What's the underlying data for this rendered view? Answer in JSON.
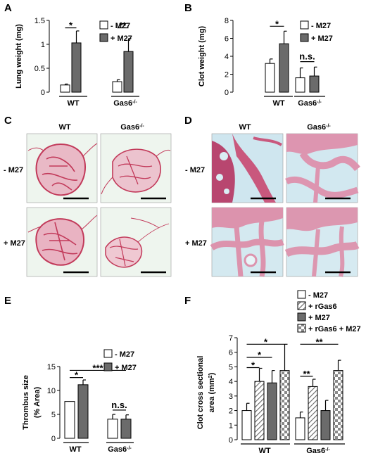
{
  "panels": {
    "A": "A",
    "B": "B",
    "C": "C",
    "D": "D",
    "E": "E",
    "F": "F"
  },
  "histology": {
    "col_wt": "WT",
    "col_gas6": "Gas6",
    "col_gas6_sup": "-/-",
    "row_minus": "- M27",
    "row_plus": "+ M27"
  },
  "colors": {
    "bar_dark": "#6b6b6b",
    "bar_white": "#ffffff",
    "tissue_c_bg": "#eef5ee",
    "tissue_c_stain": "#c23a5a",
    "tissue_d_bg": "#cfe6ef",
    "tissue_d_stain": "#c9587d"
  },
  "chart_data": [
    {
      "id": "A",
      "type": "bar",
      "ylabel": "Lung weight (mg)",
      "ylim": [
        0,
        1.5
      ],
      "yticks": [
        "0",
        "0.5",
        "1",
        "1.5"
      ],
      "groups": [
        {
          "label": "WT",
          "sup": ""
        },
        {
          "label": "Gas6",
          "sup": "-/-"
        }
      ],
      "series": [
        {
          "name": "- M27",
          "values": [
            0.15,
            0.22
          ],
          "errors": [
            0.02,
            0.04
          ]
        },
        {
          "name": "+ M27",
          "values": [
            1.03,
            0.85
          ],
          "errors": [
            0.25,
            0.27
          ]
        }
      ],
      "sig": [
        "*",
        "**"
      ]
    },
    {
      "id": "B",
      "type": "bar",
      "ylabel": "Clot weight (mg)",
      "ylim": [
        0,
        8
      ],
      "yticks": [
        "0",
        "2",
        "4",
        "6",
        "8"
      ],
      "groups": [
        {
          "label": "WT",
          "sup": ""
        },
        {
          "label": "Gas6",
          "sup": "-/-"
        }
      ],
      "series": [
        {
          "name": "- M27",
          "values": [
            3.2,
            1.6
          ],
          "errors": [
            0.5,
            1.1
          ]
        },
        {
          "name": "+ M27",
          "values": [
            5.4,
            1.8
          ],
          "errors": [
            1.4,
            1.0
          ]
        }
      ],
      "sig": [
        "*",
        "n.s."
      ]
    },
    {
      "id": "E",
      "type": "bar",
      "ylabel": "Thrombus size",
      "ylabel2": "(% Area)",
      "ylim": [
        0,
        15
      ],
      "yticks": [
        "0",
        "5",
        "10",
        "15"
      ],
      "groups": [
        {
          "label": "WT",
          "sup": ""
        },
        {
          "label": "Gas6",
          "sup": "-/-"
        }
      ],
      "series": [
        {
          "name": "- M27",
          "values": [
            7.7,
            4.0
          ],
          "errors": [
            0,
            1.0
          ]
        },
        {
          "name": "+ M27",
          "values": [
            11.2,
            4.0
          ],
          "errors": [
            1.0,
            0.9
          ]
        }
      ],
      "sig": [
        "*",
        "***",
        "n.s."
      ]
    },
    {
      "id": "F",
      "type": "bar",
      "ylabel": "Clot cross sectional",
      "ylabel2": "area (mm",
      "ylabel2_sup": "2",
      "ylabel2_end": ")",
      "ylim": [
        0,
        7
      ],
      "yticks": [
        "0",
        "1",
        "2",
        "3",
        "4",
        "5",
        "6",
        "7"
      ],
      "groups": [
        {
          "label": "WT",
          "sup": ""
        },
        {
          "label": "Gas6",
          "sup": "-/-"
        }
      ],
      "series": [
        {
          "name": "- M27",
          "values": [
            2.0,
            1.5
          ],
          "errors": [
            0.5,
            0.4
          ]
        },
        {
          "name": "+ rGas6",
          "values": [
            4.0,
            3.65
          ],
          "errors": [
            0.9,
            0.5
          ]
        },
        {
          "name": "+ M27",
          "values": [
            3.9,
            2.0
          ],
          "errors": [
            0.85,
            0.7
          ]
        },
        {
          "name": "+ rGas6 + M27",
          "values": [
            4.75,
            4.75
          ],
          "errors": [
            1.8,
            0.7
          ]
        }
      ],
      "sig": [
        "*",
        "*",
        "*",
        "**",
        "**"
      ]
    }
  ]
}
